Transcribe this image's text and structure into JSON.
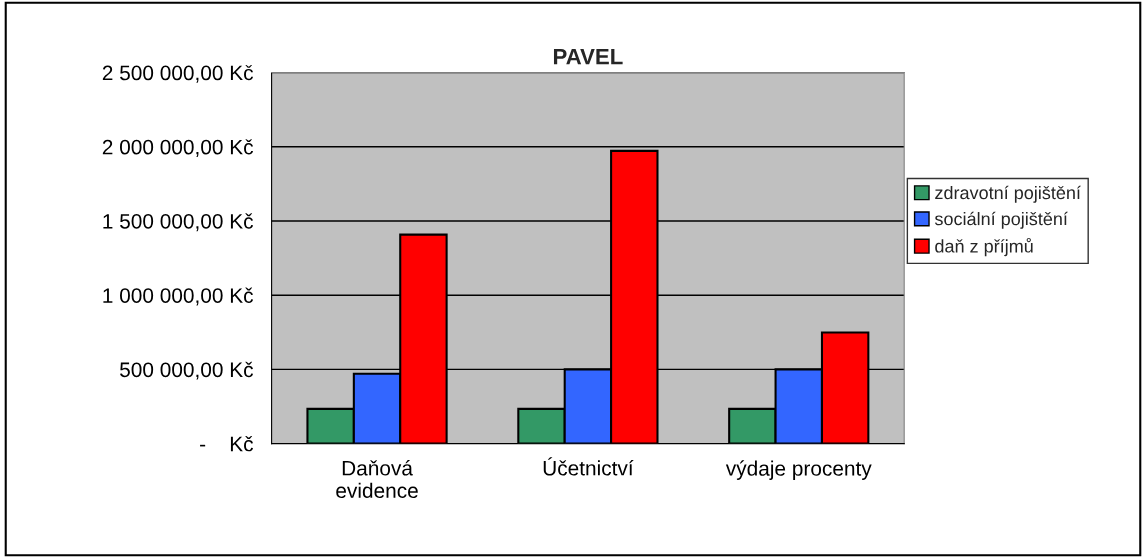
{
  "chart_data": {
    "type": "bar",
    "title": "PAVEL",
    "categories": [
      "Daňová\nevidence",
      "Účetnictví",
      "výdaje procenty"
    ],
    "series": [
      {
        "name": "zdravotní pojištění",
        "color": "#339966",
        "values": [
          234000,
          234000,
          234000
        ]
      },
      {
        "name": "sociální pojištění",
        "color": "#3366ff",
        "values": [
          471000,
          500000,
          500000
        ]
      },
      {
        "name": "daň z příjmů",
        "color": "#ff0000",
        "values": [
          1408000,
          1972000,
          749000
        ]
      }
    ],
    "ylim": [
      0,
      2500000
    ],
    "yticks": [
      {
        "value": 0,
        "label": "-    Kč"
      },
      {
        "value": 500000,
        "label": "500 000,00 Kč"
      },
      {
        "value": 1000000,
        "label": "1 000 000,00 Kč"
      },
      {
        "value": 1500000,
        "label": "1 500 000,00 Kč"
      },
      {
        "value": 2000000,
        "label": "2 000 000,00 Kč"
      },
      {
        "value": 2500000,
        "label": "2 500 000,00 Kč"
      }
    ],
    "grid": "y",
    "legend": "right"
  }
}
